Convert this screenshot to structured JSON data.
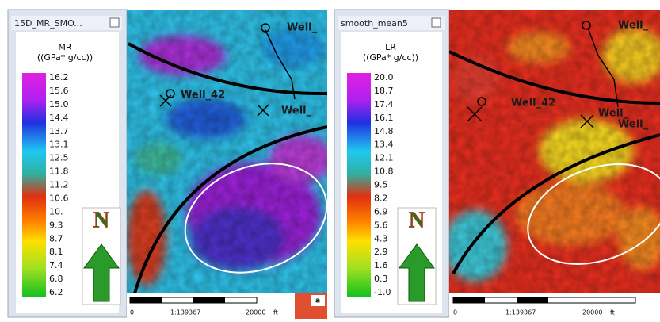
{
  "panels": [
    {
      "legend": {
        "title": "15D_MR_SMO...",
        "attribute": "MR",
        "unit": "((GPa* g/cc))",
        "labels": [
          "16.2",
          "15.6",
          "15.0",
          "14.4",
          "13.7",
          "13.1",
          "12.5",
          "11.8",
          "11.2",
          "10.6",
          "10.",
          "9.3",
          "8.7",
          "8.1",
          "7.4",
          "6.8",
          "6.2"
        ]
      },
      "north": "N",
      "wells": [
        "Well_",
        "Well_42",
        "Well_"
      ],
      "scale": {
        "start": "0",
        "ratio": "1:139367",
        "end": "20000",
        "unit": "ft"
      },
      "tag": "a"
    },
    {
      "legend": {
        "title": "smooth_mean5",
        "attribute": "LR",
        "unit": "((GPa* g/cc))",
        "labels": [
          "20.0",
          "18.7",
          "17.4",
          "16.1",
          "14.8",
          "13.4",
          "12.1",
          "10.8",
          "9.5",
          "8.2",
          "6.9",
          "5.6",
          "4.3",
          "2.9",
          "1.6",
          "0.3",
          "-1.0"
        ]
      },
      "north": "N",
      "wells": [
        "Well_",
        "Well_42",
        "Well_",
        "Well_"
      ],
      "scale": {
        "start": "0",
        "ratio": "1:139367",
        "end": "20000",
        "unit": "ft"
      }
    }
  ]
}
